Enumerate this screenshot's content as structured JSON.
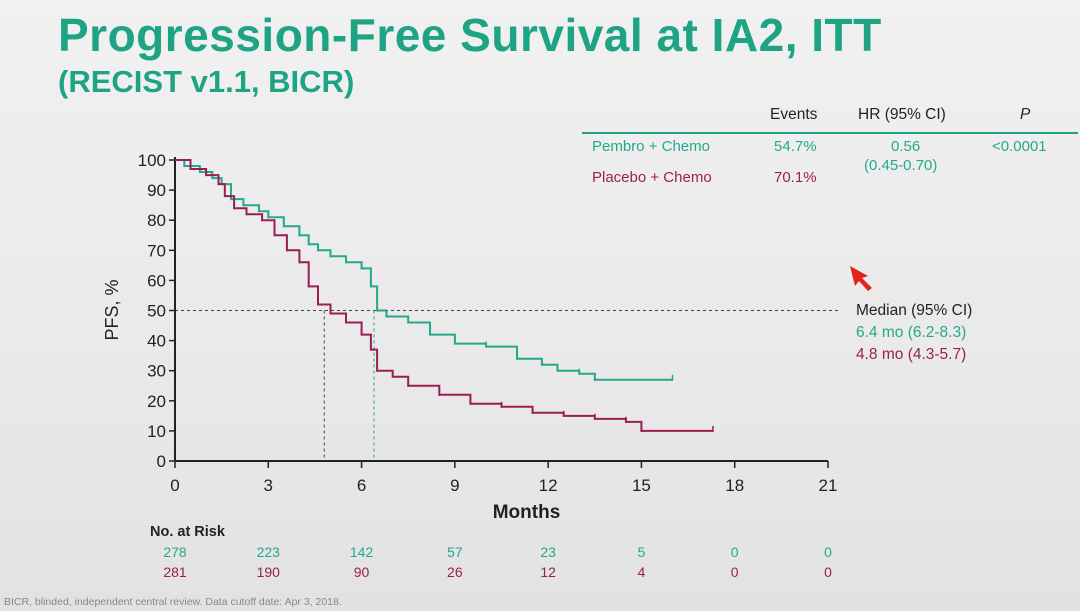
{
  "title": "Progression-Free Survival at IA2, ITT",
  "subtitle": "(RECIST v1.1, BICR)",
  "stats_table": {
    "headers": {
      "events": "Events",
      "hr": "HR (95% CI)",
      "p": "P"
    },
    "rows": [
      {
        "arm": "Pembro + Chemo",
        "events": "54.7%",
        "color": "#24a98c"
      },
      {
        "arm": "Placebo + Chemo",
        "events": "70.1%",
        "color": "#9a1e55"
      }
    ],
    "hr_value": "0.56",
    "hr_ci": "(0.45-0.70)",
    "p_value": "<0.0001"
  },
  "median": {
    "label": "Median (95% CI)",
    "pembro": "6.4 mo (6.2-8.3)",
    "placebo": "4.8 mo (4.3-5.7)"
  },
  "risk": {
    "header": "No. at Risk",
    "times": [
      0,
      3,
      6,
      9,
      12,
      15,
      18,
      21
    ],
    "pembro": [
      "278",
      "223",
      "142",
      "57",
      "23",
      "5",
      "0",
      "0"
    ],
    "placebo": [
      "281",
      "190",
      "90",
      "26",
      "12",
      "4",
      "0",
      "0"
    ]
  },
  "footnote": "BICR, blinded, independent central review. Data cutoff date: Apr 3, 2018.",
  "colors": {
    "pembro": "#24a98c",
    "placebo": "#9a1e55",
    "title": "#1fa385"
  },
  "chart_data": {
    "type": "line",
    "xlabel": "Months",
    "ylabel": "PFS, %",
    "xlim": [
      0,
      21
    ],
    "ylim": [
      0,
      100
    ],
    "xticks": [
      0,
      3,
      6,
      9,
      12,
      15,
      18,
      21
    ],
    "yticks": [
      0,
      10,
      20,
      30,
      40,
      50,
      60,
      70,
      80,
      90,
      100
    ],
    "median_reference": 50,
    "medians": [
      6.4,
      4.8
    ],
    "series": [
      {
        "name": "Pembro + Chemo",
        "color": "#24a98c",
        "x": [
          0,
          0.3,
          0.8,
          1.2,
          1.5,
          1.8,
          2.2,
          2.7,
          3.0,
          3.5,
          4.0,
          4.3,
          4.6,
          5.0,
          5.5,
          6.0,
          6.3,
          6.5,
          6.8,
          7.5,
          8.2,
          9.0,
          10.0,
          11.0,
          11.8,
          12.3,
          13.0,
          13.5,
          16.0
        ],
        "y": [
          100,
          98,
          96,
          94,
          92,
          87,
          85,
          83,
          81,
          78,
          75,
          72,
          70,
          68,
          66,
          64,
          58,
          50,
          48,
          46,
          42,
          39,
          38,
          34,
          32,
          30,
          29,
          27,
          27
        ]
      },
      {
        "name": "Placebo + Chemo",
        "color": "#9a1e55",
        "x": [
          0,
          0.5,
          1.0,
          1.4,
          1.6,
          1.9,
          2.3,
          2.8,
          3.2,
          3.6,
          4.0,
          4.3,
          4.6,
          5.0,
          5.5,
          6.0,
          6.3,
          6.5,
          7.0,
          7.5,
          8.5,
          9.5,
          10.5,
          11.5,
          12.5,
          13.5,
          14.5,
          15.0,
          17.3
        ],
        "y": [
          100,
          97,
          95,
          92,
          88,
          84,
          82,
          80,
          75,
          70,
          66,
          58,
          52,
          49,
          46,
          42,
          37,
          30,
          28,
          25,
          22,
          19,
          18,
          16,
          15,
          14,
          13,
          10,
          10
        ]
      }
    ]
  }
}
